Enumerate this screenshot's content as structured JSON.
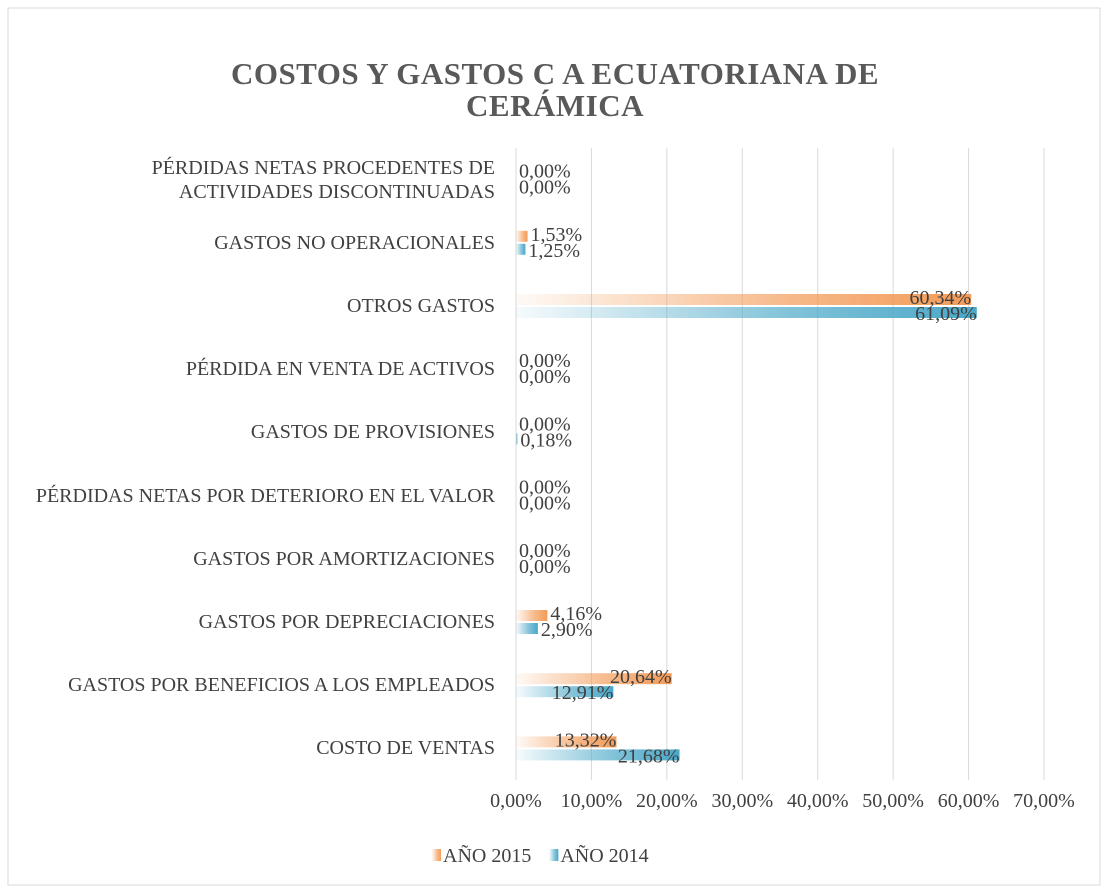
{
  "chart_data": {
    "type": "hbar",
    "title": "COSTOS Y GASTOS C A ECUATORIANA DE CERÁMICA",
    "categories": [
      "PÉRDIDAS NETAS PROCEDENTES DE ACTIVIDADES DISCONTINUADAS",
      "GASTOS NO OPERACIONALES",
      "OTROS GASTOS",
      "PÉRDIDA EN VENTA DE ACTIVOS",
      "GASTOS DE PROVISIONES",
      "PÉRDIDAS NETAS POR DETERIORO EN EL VALOR",
      "GASTOS POR AMORTIZACIONES",
      "GASTOS POR DEPRECIACIONES",
      "GASTOS POR BENEFICIOS A LOS EMPLEADOS",
      "COSTO DE VENTAS"
    ],
    "series": [
      {
        "name": "AÑO 2015",
        "color": "#f39b57",
        "values": [
          0,
          1.53,
          60.34,
          0,
          0,
          0,
          0,
          4.16,
          20.64,
          13.32
        ],
        "value_labels": [
          "0,00%",
          "1,53%",
          "60,34%",
          "0,00%",
          "0,00%",
          "0,00%",
          "0,00%",
          "4,16%",
          "20,64%",
          "13,32%"
        ]
      },
      {
        "name": "AÑO 2014",
        "color": "#4aa8c8",
        "values": [
          0,
          1.25,
          61.09,
          0,
          0.18,
          0,
          0,
          2.9,
          12.91,
          21.68
        ],
        "value_labels": [
          "0,00%",
          "1,25%",
          "61,09%",
          "0,00%",
          "0,18%",
          "0,00%",
          "0,00%",
          "2,90%",
          "12,91%",
          "21,68%"
        ]
      }
    ],
    "xlim": [
      0,
      70
    ],
    "xticks": [
      {
        "value": 0,
        "label": "0,00%"
      },
      {
        "value": 10,
        "label": "10,00%"
      },
      {
        "value": 20,
        "label": "20,00%"
      },
      {
        "value": 30,
        "label": "30,00%"
      },
      {
        "value": 40,
        "label": "40,00%"
      },
      {
        "value": 50,
        "label": "50,00%"
      },
      {
        "value": 60,
        "label": "60,00%"
      },
      {
        "value": 70,
        "label": "70,00%"
      }
    ],
    "grid": true,
    "legend": "bottom"
  }
}
